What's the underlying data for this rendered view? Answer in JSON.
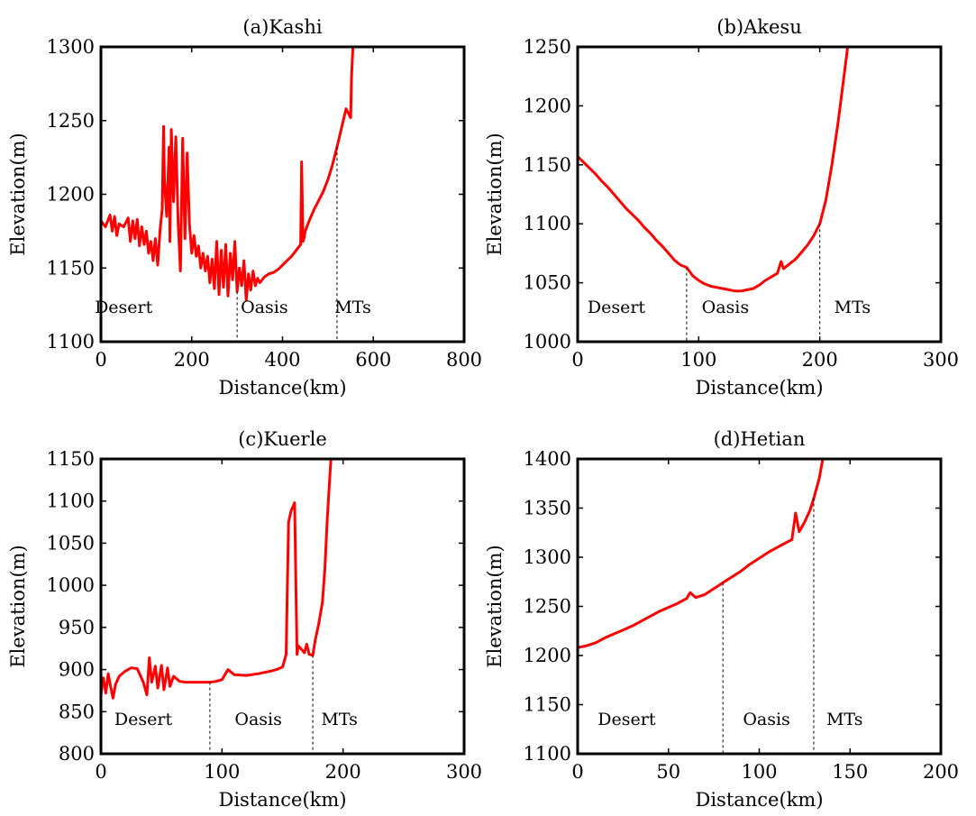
{
  "colors": {
    "series": "#ff0000",
    "axes": "#000000",
    "background": "#ffffff"
  },
  "chart_data": [
    {
      "type": "line",
      "title": "(a)Kashi",
      "xlabel": "Distance(km)",
      "ylabel": "Elevation(m)",
      "xlim": [
        0,
        800
      ],
      "ylim": [
        1100,
        1300
      ],
      "xticks": [
        0,
        200,
        400,
        600,
        800
      ],
      "yticks": [
        1100,
        1150,
        1200,
        1250,
        1300
      ],
      "grid": false,
      "legend": "none",
      "zones": [
        {
          "label": "Desert",
          "x": 50
        },
        {
          "label": "Oasis",
          "x": 360
        },
        {
          "label": "MTs",
          "x": 555
        }
      ],
      "boundaries": [
        300,
        520
      ],
      "x": [
        0,
        10,
        20,
        25,
        30,
        35,
        40,
        50,
        60,
        65,
        70,
        75,
        80,
        85,
        90,
        95,
        100,
        105,
        110,
        115,
        120,
        125,
        130,
        135,
        138,
        140,
        145,
        150,
        152,
        155,
        160,
        165,
        170,
        175,
        180,
        185,
        190,
        195,
        200,
        205,
        210,
        215,
        220,
        225,
        230,
        235,
        240,
        245,
        250,
        255,
        260,
        265,
        270,
        275,
        280,
        285,
        290,
        295,
        300,
        305,
        310,
        315,
        320,
        325,
        330,
        335,
        340,
        345,
        350,
        360,
        370,
        380,
        390,
        400,
        410,
        420,
        430,
        440,
        442,
        445,
        447,
        450,
        460,
        470,
        480,
        490,
        500,
        510,
        520,
        530,
        540,
        550,
        552,
        555
      ],
      "y": [
        1182,
        1178,
        1186,
        1175,
        1185,
        1172,
        1180,
        1178,
        1184,
        1168,
        1182,
        1170,
        1183,
        1165,
        1178,
        1166,
        1175,
        1160,
        1168,
        1155,
        1170,
        1152,
        1175,
        1190,
        1246,
        1210,
        1185,
        1232,
        1168,
        1244,
        1195,
        1239,
        1182,
        1148,
        1238,
        1170,
        1228,
        1180,
        1160,
        1172,
        1158,
        1165,
        1150,
        1160,
        1148,
        1158,
        1140,
        1156,
        1136,
        1168,
        1132,
        1162,
        1137,
        1166,
        1131,
        1160,
        1142,
        1168,
        1134,
        1150,
        1138,
        1155,
        1128,
        1146,
        1135,
        1148,
        1138,
        1143,
        1140,
        1144,
        1146,
        1147,
        1149,
        1152,
        1155,
        1158,
        1162,
        1166,
        1222,
        1168,
        1170,
        1175,
        1183,
        1190,
        1196,
        1202,
        1210,
        1220,
        1232,
        1245,
        1258,
        1252,
        1280,
        1300
      ]
    },
    {
      "type": "line",
      "title": "(b)Akesu",
      "xlabel": "Distance(km)",
      "ylabel": "Elevation(m)",
      "xlim": [
        0,
        300
      ],
      "ylim": [
        1000,
        1250
      ],
      "xticks": [
        0,
        100,
        200,
        300
      ],
      "yticks": [
        1000,
        1050,
        1100,
        1150,
        1200,
        1250
      ],
      "grid": false,
      "legend": "none",
      "zones": [
        {
          "label": "Desert",
          "x": 32
        },
        {
          "label": "Oasis",
          "x": 122
        },
        {
          "label": "MTs",
          "x": 227
        }
      ],
      "boundaries": [
        90,
        200
      ],
      "x": [
        0,
        5,
        10,
        15,
        20,
        25,
        30,
        35,
        40,
        45,
        50,
        55,
        60,
        65,
        70,
        75,
        80,
        85,
        90,
        95,
        100,
        105,
        110,
        115,
        120,
        125,
        130,
        135,
        140,
        145,
        150,
        155,
        160,
        165,
        168,
        170,
        175,
        180,
        185,
        190,
        195,
        200,
        205,
        210,
        215,
        220,
        223
      ],
      "y": [
        1157,
        1152,
        1147,
        1142,
        1136,
        1131,
        1125,
        1119,
        1113,
        1108,
        1103,
        1097,
        1092,
        1086,
        1081,
        1075,
        1069,
        1065,
        1063,
        1056,
        1052,
        1049,
        1047,
        1046,
        1045,
        1044,
        1043,
        1043,
        1044,
        1045,
        1048,
        1052,
        1055,
        1058,
        1068,
        1062,
        1066,
        1070,
        1076,
        1082,
        1090,
        1100,
        1120,
        1150,
        1185,
        1225,
        1250
      ]
    },
    {
      "type": "line",
      "title": "(c)Kuerle",
      "xlabel": "Distance(km)",
      "ylabel": "Elevation(m)",
      "xlim": [
        0,
        300
      ],
      "ylim": [
        800,
        1150
      ],
      "xticks": [
        0,
        100,
        200,
        300
      ],
      "yticks": [
        800,
        850,
        900,
        950,
        1000,
        1050,
        1100,
        1150
      ],
      "grid": false,
      "legend": "none",
      "zones": [
        {
          "label": "Desert",
          "x": 35
        },
        {
          "label": "Oasis",
          "x": 130
        },
        {
          "label": "MTs",
          "x": 197
        }
      ],
      "boundaries": [
        90,
        175
      ],
      "x": [
        0,
        2,
        4,
        6,
        8,
        10,
        12,
        15,
        20,
        25,
        30,
        35,
        38,
        40,
        42,
        45,
        47,
        50,
        52,
        55,
        57,
        60,
        65,
        70,
        80,
        90,
        95,
        100,
        105,
        110,
        120,
        130,
        140,
        145,
        150,
        153,
        155,
        157,
        160,
        162,
        163,
        165,
        168,
        170,
        172,
        175,
        177,
        180,
        183,
        185,
        187,
        190
      ],
      "y": [
        870,
        890,
        872,
        895,
        880,
        866,
        882,
        892,
        898,
        902,
        901,
        885,
        870,
        914,
        885,
        904,
        878,
        905,
        876,
        902,
        880,
        892,
        886,
        885,
        885,
        885,
        886,
        888,
        900,
        894,
        893,
        895,
        898,
        900,
        903,
        918,
        1075,
        1088,
        1098,
        918,
        928,
        925,
        920,
        930,
        918,
        917,
        935,
        955,
        980,
        1020,
        1080,
        1150
      ]
    },
    {
      "type": "line",
      "title": "(d)Hetian",
      "xlabel": "Distance(km)",
      "ylabel": "Elevation(m)",
      "xlim": [
        0,
        200
      ],
      "ylim": [
        1100,
        1400
      ],
      "xticks": [
        0,
        50,
        100,
        150,
        200
      ],
      "yticks": [
        1100,
        1150,
        1200,
        1250,
        1300,
        1350,
        1400
      ],
      "grid": false,
      "legend": "none",
      "zones": [
        {
          "label": "Desert",
          "x": 27
        },
        {
          "label": "Oasis",
          "x": 104
        },
        {
          "label": "MTs",
          "x": 147
        }
      ],
      "boundaries": [
        80,
        130
      ],
      "x": [
        0,
        5,
        10,
        15,
        20,
        25,
        30,
        35,
        40,
        45,
        50,
        55,
        60,
        62,
        65,
        70,
        75,
        80,
        85,
        90,
        95,
        100,
        105,
        110,
        115,
        118,
        120,
        122,
        125,
        128,
        130,
        133,
        135
      ],
      "y": [
        1208,
        1210,
        1213,
        1218,
        1222,
        1226,
        1230,
        1235,
        1240,
        1245,
        1249,
        1253,
        1258,
        1264,
        1259,
        1262,
        1268,
        1274,
        1280,
        1286,
        1293,
        1299,
        1305,
        1310,
        1315,
        1318,
        1345,
        1326,
        1336,
        1348,
        1360,
        1380,
        1400
      ]
    }
  ]
}
